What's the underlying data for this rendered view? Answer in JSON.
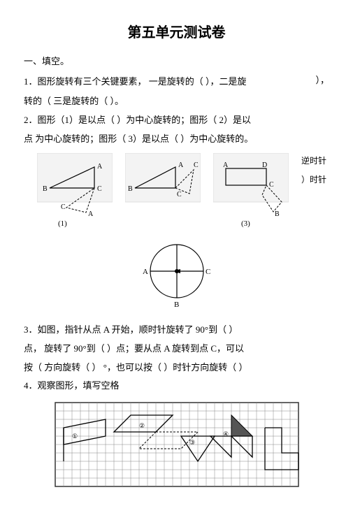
{
  "title": "第五单元测试卷",
  "section1": "一、填空。",
  "q1": "1．图形旋转有三个关键要素， 一是旋转的（  ），二是旋",
  "q1_side": "），",
  "q1b": "转的（   三是旋转的（  ）。",
  "q2": "2．图形（1）是以点（  ）为中心旋转的；图形（ 2）是以",
  "q2b": "点  为中心旋转的；图形（ 3）是以点（  ）为中心旋转的。",
  "side_top": "逆时针",
  "side_mid": "）时针",
  "fig1": {
    "labels": {
      "A": "A",
      "B": "B",
      "C": "C"
    },
    "caption": "(1)"
  },
  "fig2": {
    "labels": {
      "A": "A",
      "B": "B",
      "C": "C"
    }
  },
  "fig3": {
    "labels": {
      "A": "A",
      "B": "B",
      "C": "C",
      "D": "D"
    },
    "caption": "(3)"
  },
  "circle_labels": {
    "A": "A",
    "B": "B",
    "C": "C"
  },
  "q3": "3．如图，指针从点 A 开始，顺时针旋转了 90°到（  ）",
  "q3b": "点， 旋转了 90°到（  ）点；要从点 A 旋转到点 C，可以",
  "q3c": "按（   方向旋转（  ） °，也可以按（  ）时针方向旋转（  ）",
  "q4": "4．观察图形，填写空格",
  "grid": {
    "cols": 29,
    "rows": 10,
    "cell": 12,
    "border_color": "#333",
    "line_color": "#888"
  }
}
